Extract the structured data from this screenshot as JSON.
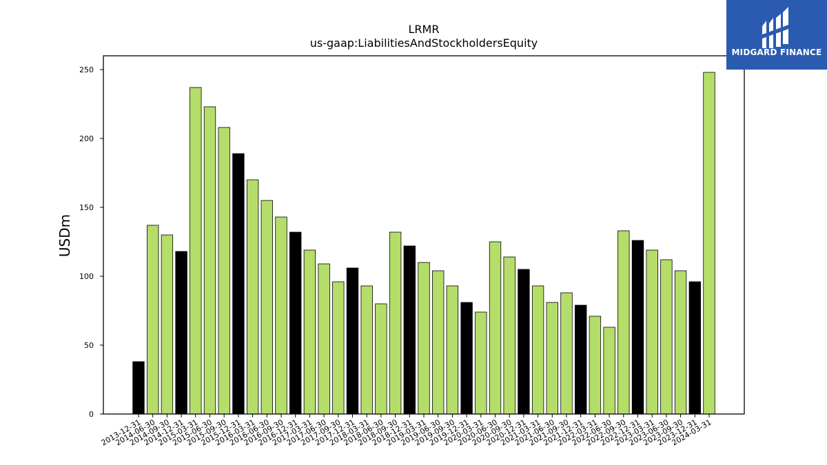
{
  "chart_data": {
    "type": "bar",
    "title": "LRMR",
    "subtitle": "us-gaap:LiabilitiesAndStockholdersEquity",
    "xlabel": "",
    "ylabel": "USDm",
    "ylim": [
      0,
      260
    ],
    "yticks": [
      0,
      50,
      100,
      150,
      200,
      250
    ],
    "grid": false,
    "bar_colors": {
      "quarter": "#b5dd6a",
      "year_end": "#000000"
    },
    "categories": [
      "2013-12-31",
      "2014-06-30",
      "2014-09-30",
      "2014-12-31",
      "2015-03-31",
      "2015-06-30",
      "2015-09-30",
      "2015-12-31",
      "2016-03-31",
      "2016-06-30",
      "2016-09-30",
      "2016-12-31",
      "2017-03-31",
      "2017-06-30",
      "2017-09-30",
      "2017-12-31",
      "2018-03-31",
      "2018-06-30",
      "2018-09-30",
      "2018-12-31",
      "2019-03-31",
      "2019-06-30",
      "2019-09-30",
      "2019-12-31",
      "2020-03-31",
      "2020-06-30",
      "2020-09-30",
      "2020-12-31",
      "2021-03-31",
      "2021-06-30",
      "2021-09-30",
      "2021-12-31",
      "2022-03-31",
      "2022-06-30",
      "2022-09-30",
      "2022-12-31",
      "2023-03-31",
      "2023-06-30",
      "2023-09-30",
      "2023-12-31",
      "2024-03-31"
    ],
    "values": [
      38,
      137,
      130,
      118,
      237,
      223,
      208,
      189,
      170,
      155,
      143,
      132,
      119,
      109,
      96,
      106,
      93,
      80,
      132,
      122,
      110,
      104,
      93,
      81,
      74,
      125,
      114,
      105,
      93,
      81,
      88,
      79,
      71,
      63,
      133,
      126,
      119,
      112,
      104,
      96,
      248
    ]
  },
  "logo": {
    "text": "MIDGARD FINANCE"
  }
}
